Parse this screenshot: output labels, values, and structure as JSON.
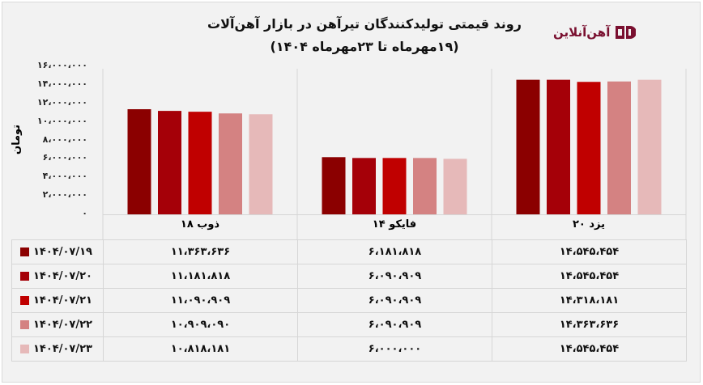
{
  "header": {
    "title": "روند قیمتی تولیدکنندگان تیرآهن در بازار آهن‌آلات",
    "subtitle": "(۱۹مهرماه تا ۲۳مهرماه ۱۴۰۴)",
    "logo_text": "آهن‌آنلاین"
  },
  "chart_data": {
    "type": "bar",
    "title": "روند قیمتی تولیدکنندگان تیرآهن در بازار آهن‌آلات",
    "subtitle": "(۱۹مهرماه تا ۲۳مهرماه ۱۴۰۴)",
    "ylabel": "تومان",
    "ylim": [
      0,
      16000000
    ],
    "yticks": [
      0,
      2000000,
      4000000,
      6000000,
      8000000,
      10000000,
      12000000,
      14000000,
      16000000
    ],
    "ytick_labels": [
      "۰",
      "۲،۰۰۰،۰۰۰",
      "۴،۰۰۰،۰۰۰",
      "۶،۰۰۰،۰۰۰",
      "۸،۰۰۰،۰۰۰",
      "۱۰،۰۰۰،۰۰۰",
      "۱۲،۰۰۰،۰۰۰",
      "۱۴،۰۰۰،۰۰۰",
      "۱۶،۰۰۰،۰۰۰"
    ],
    "categories": [
      "ذوب ۱۸",
      "فایکو ۱۴",
      "یزد ۲۰"
    ],
    "legend_placement": "bottom (data table)",
    "series": [
      {
        "name": "۱۴۰۴/۰۷/۱۹",
        "color": "#8b0000",
        "values": [
          11363636,
          6181818,
          14545454
        ],
        "labels": [
          "۱۱،۳۶۳،۶۳۶",
          "۶،۱۸۱،۸۱۸",
          "۱۴،۵۴۵،۴۵۴"
        ]
      },
      {
        "name": "۱۴۰۴/۰۷/۲۰",
        "color": "#a50008",
        "values": [
          11181818,
          6090909,
          14545454
        ],
        "labels": [
          "۱۱،۱۸۱،۸۱۸",
          "۶،۰۹۰،۹۰۹",
          "۱۴،۵۴۵،۴۵۴"
        ]
      },
      {
        "name": "۱۴۰۴/۰۷/۲۱",
        "color": "#c00000",
        "values": [
          11090909,
          6090909,
          14318181
        ],
        "labels": [
          "۱۱،۰۹۰،۹۰۹",
          "۶،۰۹۰،۹۰۹",
          "۱۴،۳۱۸،۱۸۱"
        ]
      },
      {
        "name": "۱۴۰۴/۰۷/۲۲",
        "color": "#d48282",
        "values": [
          10909090,
          6090909,
          14363636
        ],
        "labels": [
          "۱۰،۹۰۹،۰۹۰",
          "۶،۰۹۰،۹۰۹",
          "۱۴،۳۶۳،۶۳۶"
        ]
      },
      {
        "name": "۱۴۰۴/۰۷/۲۳",
        "color": "#e6b9b9",
        "values": [
          10818181,
          6000000,
          14545454
        ],
        "labels": [
          "۱۰،۸۱۸،۱۸۱",
          "۶،۰۰۰،۰۰۰",
          "۱۴،۵۴۵،۴۵۴"
        ]
      }
    ]
  }
}
